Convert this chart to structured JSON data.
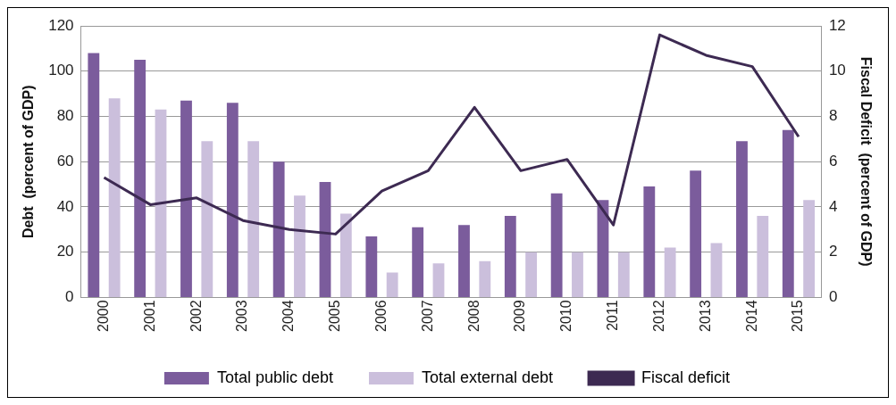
{
  "chart_data": {
    "type": "bar",
    "ylabel": "Debt  (percent of GDP)",
    "y2label": "Fiscal Deficit  (percent of GDP)",
    "categories": [
      "2000",
      "2001",
      "2002",
      "2003",
      "2004",
      "2005",
      "2006",
      "2007",
      "2008",
      "2009",
      "2010",
      "2011",
      "2012",
      "2013",
      "2014",
      "2015"
    ],
    "series": [
      {
        "name": "Total public debt",
        "color": "#7b5c9c",
        "values": [
          108,
          105,
          87,
          86,
          60,
          51,
          27,
          31,
          32,
          36,
          46,
          43,
          49,
          56,
          69,
          74
        ]
      },
      {
        "name": "Total external debt",
        "color": "#cbbfdc",
        "values": [
          88,
          83,
          69,
          69,
          45,
          37,
          11,
          15,
          16,
          20,
          20,
          20,
          22,
          24,
          36,
          43
        ]
      },
      {
        "name": "Fiscal deficit",
        "type": "line",
        "axis": "y2",
        "color": "#3d2a52",
        "values": [
          5.3,
          4.1,
          4.4,
          3.4,
          3.0,
          2.8,
          4.7,
          5.6,
          8.4,
          5.6,
          6.1,
          3.2,
          11.6,
          10.7,
          10.2,
          7.1
        ]
      }
    ],
    "ylim": [
      0,
      120
    ],
    "yticks": [
      0,
      20,
      40,
      60,
      80,
      100,
      120
    ],
    "y2lim": [
      0,
      12
    ],
    "y2ticks": [
      0,
      2,
      4,
      6,
      8,
      10,
      12
    ],
    "grid": "y",
    "legend": "bottom",
    "marker": "none"
  }
}
